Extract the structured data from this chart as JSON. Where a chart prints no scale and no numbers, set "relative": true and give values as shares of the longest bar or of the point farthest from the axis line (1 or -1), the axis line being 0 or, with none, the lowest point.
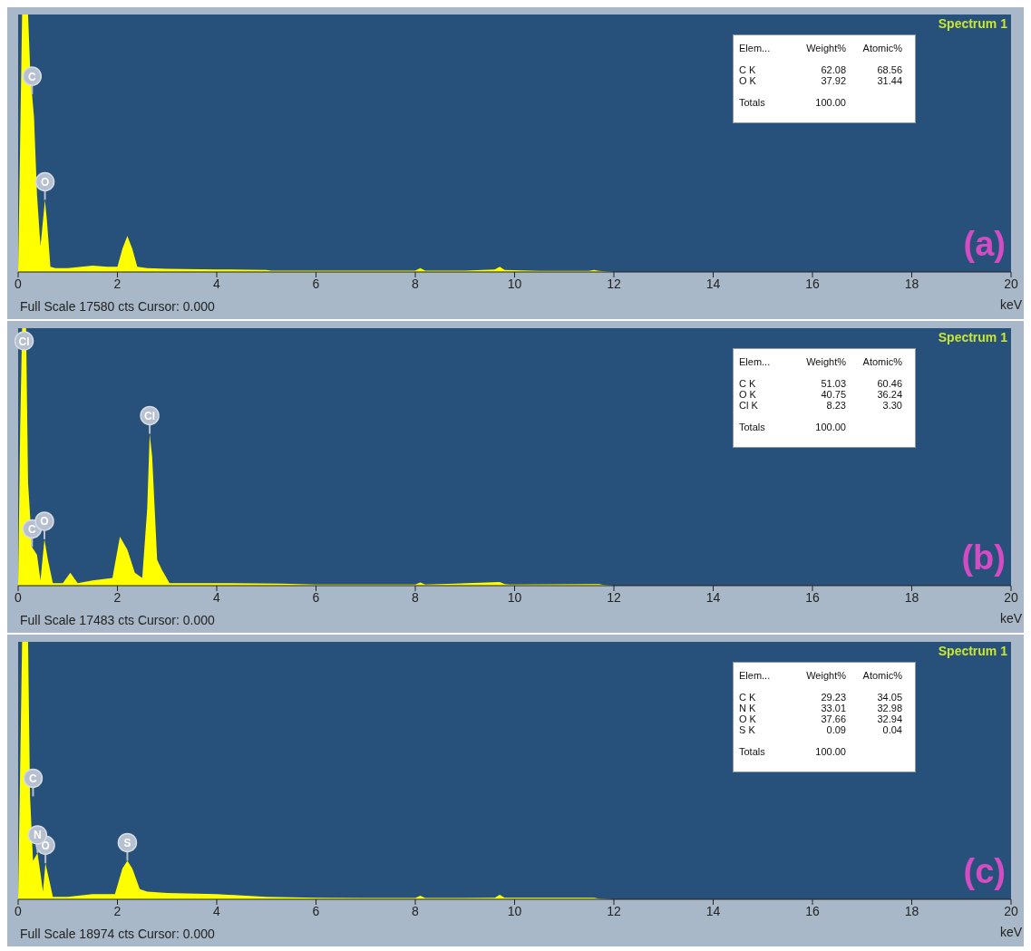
{
  "chart_data": [
    {
      "type": "area",
      "title": "(a)",
      "subtitle": "Spectrum 1",
      "xlabel": "keV",
      "relative": true,
      "color": "#ffff00",
      "xlim": [
        0,
        20
      ],
      "xticks": [
        0,
        2,
        4,
        6,
        8,
        10,
        12,
        14,
        16,
        18,
        20
      ],
      "x": [
        0,
        0.04,
        0.08,
        0.12,
        0.16,
        0.2,
        0.24,
        0.28,
        0.32,
        0.38,
        0.45,
        0.5,
        0.54,
        0.58,
        0.65,
        0.75,
        1.0,
        1.5,
        1.8,
        2.0,
        2.1,
        2.2,
        2.3,
        2.4,
        2.6,
        3,
        4,
        5,
        5.1,
        6,
        7,
        8,
        8.1,
        8.2,
        9,
        9.6,
        9.7,
        9.8,
        10.5,
        11.5,
        11.6,
        11.7,
        11.8,
        12
      ],
      "values": [
        0,
        0.5,
        1,
        1,
        1,
        1,
        0.8,
        0.69,
        0.6,
        0.3,
        0.1,
        0.2,
        0.28,
        0.2,
        0.02,
        0.015,
        0.015,
        0.025,
        0.02,
        0.02,
        0.09,
        0.14,
        0.09,
        0.02,
        0.015,
        0.012,
        0.01,
        0.008,
        0.005,
        0.005,
        0.005,
        0.005,
        0.015,
        0.005,
        0.005,
        0.01,
        0.02,
        0.008,
        0.004,
        0.004,
        0.008,
        0.004,
        0.003,
        0
      ],
      "annotations": [
        "Full Scale 17580 cts Cursor: 0.000",
        "Elem...\tWeight%\tAtomic%",
        "C K\t62.08\t68.56",
        "O K\t37.92\t31.44",
        "Totals\t100.00",
        {
          "text": "C",
          "x": 0.28,
          "y": 0.69
        },
        {
          "text": "O",
          "x": 0.54,
          "y": 0.28
        }
      ]
    },
    {
      "type": "area",
      "title": "(b)",
      "subtitle": "Spectrum 1",
      "xlabel": "keV",
      "relative": true,
      "color": "#ffff00",
      "xlim": [
        0,
        20
      ],
      "xticks": [
        0,
        2,
        4,
        6,
        8,
        10,
        12,
        14,
        16,
        18,
        20
      ],
      "x": [
        0,
        0.04,
        0.08,
        0.12,
        0.16,
        0.2,
        0.28,
        0.38,
        0.45,
        0.53,
        0.6,
        0.7,
        0.9,
        1.05,
        1.2,
        1.5,
        1.9,
        2.05,
        2.2,
        2.35,
        2.5,
        2.6,
        2.65,
        2.7,
        2.8,
        2.9,
        3.05,
        3.5,
        4,
        5.3,
        6,
        8,
        8.1,
        8.2,
        9.7,
        9.8,
        9.9,
        11.7,
        11.8,
        12
      ],
      "values": [
        0,
        0.6,
        1,
        1,
        1,
        0.4,
        0.15,
        0.12,
        0.02,
        0.18,
        0.1,
        0.01,
        0.01,
        0.05,
        0.01,
        0.02,
        0.03,
        0.19,
        0.14,
        0.05,
        0.03,
        0.3,
        0.59,
        0.5,
        0.1,
        0.06,
        0.01,
        0.01,
        0.01,
        0.008,
        0.004,
        0.004,
        0.012,
        0.004,
        0.014,
        0.006,
        0.004,
        0.006,
        0.003,
        0
      ],
      "annotations": [
        "Full Scale 17483 cts Cursor: 0.000",
        "Elem...\tWeight%\tAtomic%",
        "C K\t51.03\t60.46",
        "O K\t40.75\t36.24",
        "Cl K\t8.23\t3.30",
        "Totals\t100.00",
        {
          "text": "Cl",
          "x": 0.12,
          "y": 1
        },
        {
          "text": "Cl",
          "x": 2.65,
          "y": 0.59
        },
        {
          "text": "C",
          "x": 0.28,
          "y": 0.15
        },
        {
          "text": "O",
          "x": 0.53,
          "y": 0.18
        }
      ]
    },
    {
      "type": "area",
      "title": "(c)",
      "subtitle": "Spectrum 1",
      "xlabel": "keV",
      "relative": true,
      "color": "#ffff00",
      "xlim": [
        0,
        20
      ],
      "xticks": [
        0,
        2,
        4,
        6,
        8,
        10,
        12,
        14,
        16,
        18,
        20
      ],
      "x": [
        0,
        0.04,
        0.08,
        0.12,
        0.16,
        0.2,
        0.24,
        0.3,
        0.39,
        0.45,
        0.5,
        0.55,
        0.62,
        0.7,
        1,
        1.5,
        1.8,
        1.95,
        2.1,
        2.2,
        2.3,
        2.45,
        2.6,
        3,
        4,
        5,
        6,
        7,
        8,
        8.1,
        8.2,
        9.6,
        9.7,
        9.8,
        11.6,
        11.7,
        12
      ],
      "values": [
        0,
        0.5,
        1,
        1,
        1,
        1,
        0.4,
        0.15,
        0.18,
        0.1,
        0.03,
        0.14,
        0.08,
        0.01,
        0.01,
        0.02,
        0.02,
        0.02,
        0.12,
        0.15,
        0.12,
        0.04,
        0.03,
        0.025,
        0.02,
        0.01,
        0.006,
        0.005,
        0.005,
        0.014,
        0.005,
        0.006,
        0.018,
        0.006,
        0.006,
        0.003,
        0
      ],
      "annotations": [
        "Full Scale 18974 cts Cursor: 0.000",
        "Elem...\tWeight%\tAtomic%",
        "C K\t29.23\t34.05",
        "N K\t33.01\t32.98",
        "O K\t37.66\t32.94",
        "S K\t0.09\t0.04",
        "Totals\t100.00",
        {
          "text": "C",
          "x": 0.3,
          "y": 0.4
        },
        {
          "text": "O",
          "x": 0.55,
          "y": 0.14
        },
        {
          "text": "N",
          "x": 0.39,
          "y": 0.18
        },
        {
          "text": "S",
          "x": 2.2,
          "y": 0.15
        }
      ]
    }
  ]
}
